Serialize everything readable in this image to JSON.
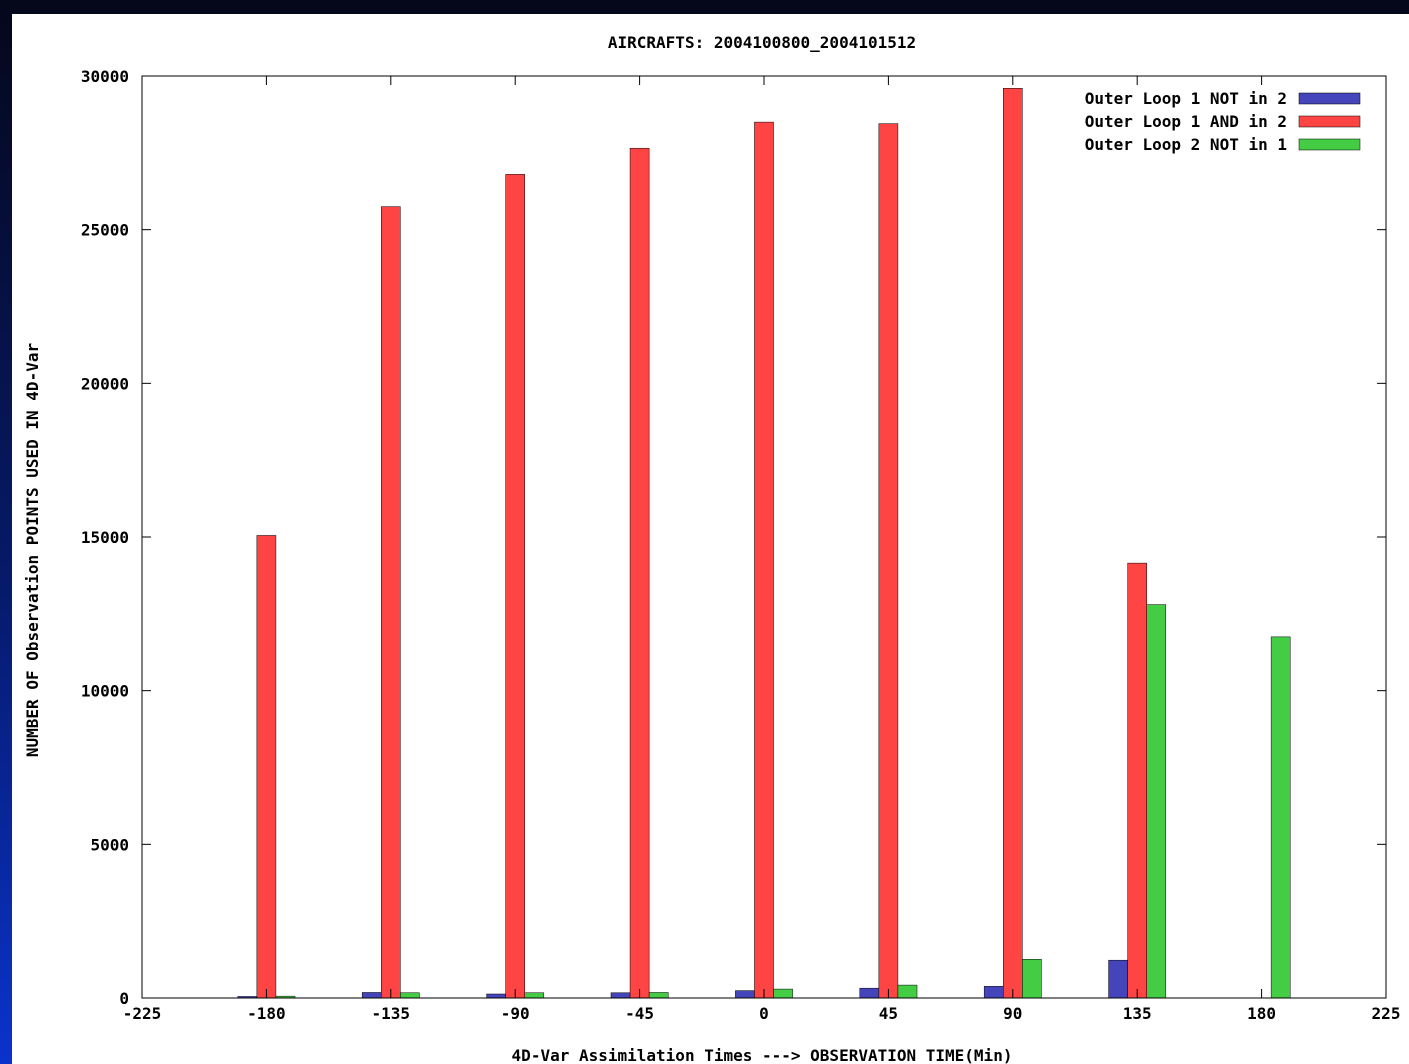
{
  "chart_data": {
    "type": "bar",
    "title": "AIRCRAFTS: 2004100800_2004101512",
    "xlabel": "4D-Var Assimilation Times ---> OBSERVATION TIME(Min)",
    "ylabel": "NUMBER OF Observation POINTS USED IN 4D-Var",
    "xlim": [
      -225,
      225
    ],
    "ylim": [
      0,
      30000
    ],
    "xticks": [
      "-225",
      "-180",
      "-135",
      "-90",
      "-45",
      "0",
      "45",
      "90",
      "135",
      "180",
      "225"
    ],
    "yticks": [
      "0",
      "5000",
      "10000",
      "15000",
      "20000",
      "25000",
      "30000"
    ],
    "categories": [
      -180,
      -135,
      -90,
      -45,
      0,
      45,
      90,
      135,
      180
    ],
    "legend_position": "top-right",
    "series": [
      {
        "name": "Outer Loop 1 NOT in 2",
        "color": "#4444bb",
        "values": [
          50,
          180,
          130,
          170,
          240,
          320,
          380,
          1230,
          0
        ]
      },
      {
        "name": "Outer Loop 1 AND in 2",
        "color": "#ff4444",
        "values": [
          15050,
          25750,
          26800,
          27650,
          28500,
          28450,
          29600,
          14150,
          0
        ]
      },
      {
        "name": "Outer Loop 2 NOT in 1",
        "color": "#44cc44",
        "values": [
          60,
          170,
          170,
          180,
          290,
          420,
          1260,
          12800,
          11750
        ]
      }
    ]
  }
}
